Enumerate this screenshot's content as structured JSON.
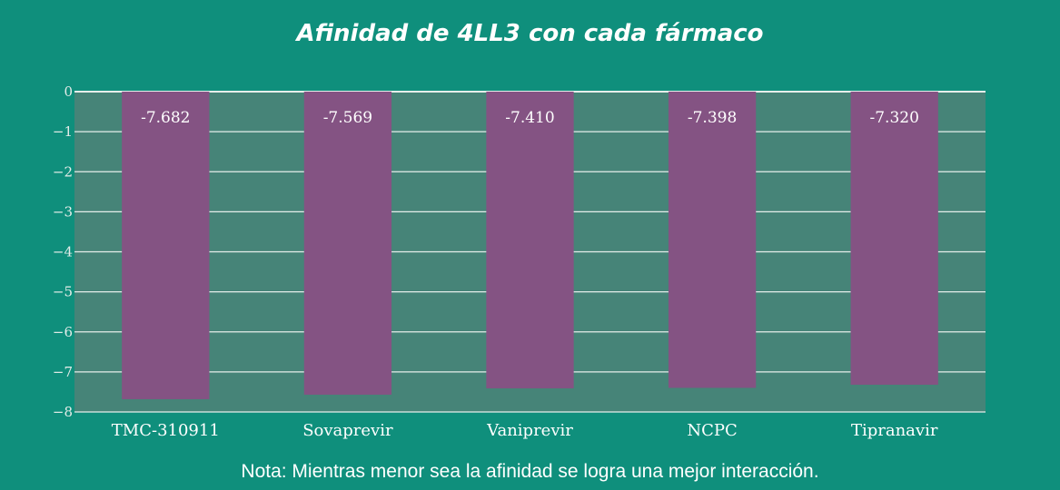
{
  "title": "Afinidad de 4LL3 con cada fármaco",
  "note": "Nota: Mientras menor sea la afinidad se logra una mejor interacción.",
  "colors": {
    "background": "#0f8f7c",
    "plot_area": "#468478",
    "bar": "#845383",
    "grid": "#e6eeeb"
  },
  "chart_data": {
    "type": "bar",
    "title": "Afinidad de 4LL3 con cada fármaco",
    "xlabel": "",
    "ylabel": "",
    "categories": [
      "TMC-310911",
      "Sovaprevir",
      "Vaniprevir",
      "NCPC",
      "Tipranavir"
    ],
    "values": [
      -7.682,
      -7.569,
      -7.41,
      -7.398,
      -7.32
    ],
    "data_labels": [
      "-7.682",
      "-7.569",
      "-7.410",
      "-7.398",
      "-7.320"
    ],
    "ylim": [
      -8,
      0
    ],
    "yticks": [
      0,
      -1,
      -2,
      -3,
      -4,
      -5,
      -6,
      -7,
      -8
    ],
    "ytick_labels": [
      "0",
      "−1",
      "−2",
      "−3",
      "−4",
      "−5",
      "−6",
      "−7",
      "−8"
    ],
    "grid": true,
    "legend": "none"
  }
}
